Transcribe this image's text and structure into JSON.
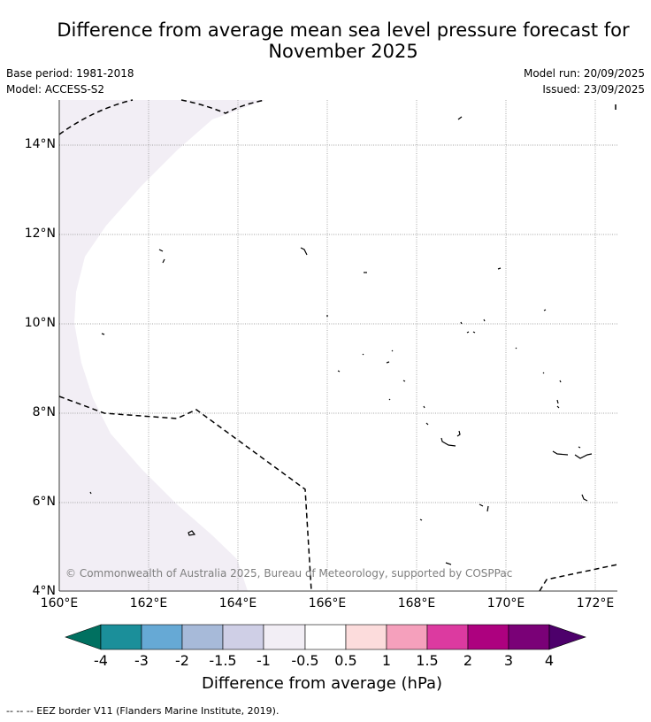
{
  "header": {
    "title_line1": "Difference from average mean sea level pressure forecast for",
    "title_line2": "November 2025",
    "base_period": "Base period: 1981-2018",
    "model": "Model: ACCESS-S2",
    "model_run": "Model run: 20/09/2025",
    "issued": "Issued: 23/09/2025"
  },
  "map": {
    "lon_range": [
      160,
      172.5
    ],
    "lat_range": [
      4,
      15
    ],
    "lat_ticks": [
      "14°N",
      "12°N",
      "10°N",
      "8°N",
      "6°N",
      "4°N"
    ],
    "lon_ticks": [
      "160°E",
      "162°E",
      "164°E",
      "166°E",
      "168°E",
      "170°E",
      "172°E"
    ],
    "copyright": "© Commonwealth of Australia 2025, Bureau of Meteorology, supported by COSPPac",
    "shaded_class": "-1 to -0.5",
    "shaded_color": "#f2eef5"
  },
  "colorbar": {
    "title": "Difference from average (hPa)",
    "ticks": [
      "-4",
      "-3",
      "-2",
      "-1.5",
      "-1",
      "-0.5",
      "0.5",
      "1",
      "1.5",
      "2",
      "3",
      "4"
    ],
    "colors": [
      "#007060",
      "#1b8f9a",
      "#66a9d5",
      "#a7bad9",
      "#cfcfe6",
      "#f2eef5",
      "#ffffff",
      "#fcdcdc",
      "#f5a0bc",
      "#dc3aa0",
      "#ad017f",
      "#7a0177",
      "#4d006b"
    ]
  },
  "legend": {
    "text": "--  --  -- EEZ border V11 (Flanders Marine Institute, 2019)."
  }
}
